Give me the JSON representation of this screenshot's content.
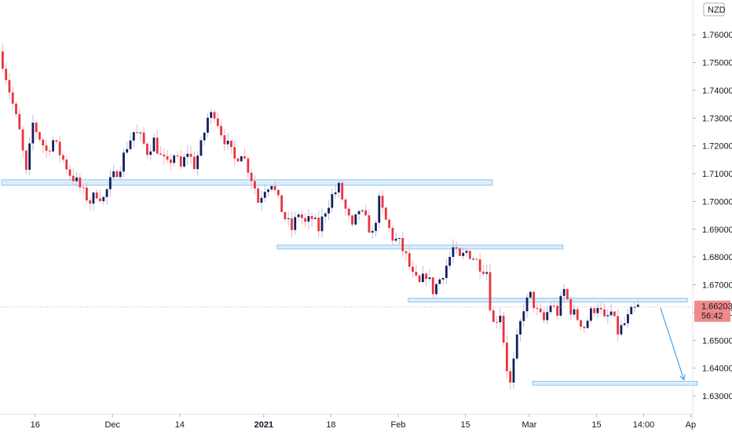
{
  "chart_data": {
    "type": "candlestick",
    "currency_label": "NZD",
    "price_axis": {
      "range": [
        1.6235,
        1.7725
      ],
      "ticks": [
        "1.76000",
        "1.75000",
        "1.74000",
        "1.73000",
        "1.72000",
        "1.71000",
        "1.70000",
        "1.69000",
        "1.68000",
        "1.67000",
        "1.66000",
        "1.65000",
        "1.64000",
        "1.63000"
      ],
      "tick_values": [
        1.76,
        1.75,
        1.74,
        1.73,
        1.72,
        1.71,
        1.7,
        1.69,
        1.68,
        1.67,
        1.66,
        1.65,
        1.64,
        1.63
      ]
    },
    "time_axis": {
      "labels": [
        {
          "text": "16",
          "bar": 10,
          "bold": false
        },
        {
          "text": "Dec",
          "bar": 33,
          "bold": false
        },
        {
          "text": "14",
          "bar": 53,
          "bold": false
        },
        {
          "text": "2021",
          "bar": 78,
          "bold": true
        },
        {
          "text": "18",
          "bar": 98,
          "bold": false
        },
        {
          "text": "Feb",
          "bar": 118,
          "bold": false
        },
        {
          "text": "15",
          "bar": 138,
          "bold": false
        },
        {
          "text": "Mar",
          "bar": 157,
          "bold": false
        },
        {
          "text": "15",
          "bar": 177,
          "bold": false
        },
        {
          "text": "14:00",
          "bar": 191,
          "bold": false
        },
        {
          "text": "Ap",
          "bar": 205,
          "bold": false
        }
      ]
    },
    "last_price": {
      "value": "1.66203",
      "countdown": "56:42",
      "level": 1.66203
    },
    "close_path": [
      [
        0,
        1.75
      ],
      [
        3,
        1.735
      ],
      [
        5,
        1.725
      ],
      [
        7,
        1.71
      ],
      [
        9,
        1.728
      ],
      [
        11,
        1.723
      ],
      [
        13,
        1.718
      ],
      [
        15,
        1.722
      ],
      [
        18,
        1.715
      ],
      [
        20,
        1.71
      ],
      [
        22,
        1.707
      ],
      [
        24,
        1.703
      ],
      [
        26,
        1.7
      ],
      [
        28,
        1.703
      ],
      [
        30,
        1.701
      ],
      [
        32,
        1.707
      ],
      [
        35,
        1.713
      ],
      [
        37,
        1.72
      ],
      [
        39,
        1.725
      ],
      [
        41,
        1.723
      ],
      [
        43,
        1.718
      ],
      [
        45,
        1.722
      ],
      [
        47,
        1.716
      ],
      [
        49,
        1.713
      ],
      [
        51,
        1.717
      ],
      [
        53,
        1.712
      ],
      [
        55,
        1.718
      ],
      [
        57,
        1.713
      ],
      [
        59,
        1.72
      ],
      [
        61,
        1.73
      ],
      [
        63,
        1.732
      ],
      [
        65,
        1.725
      ],
      [
        67,
        1.72
      ],
      [
        69,
        1.715
      ],
      [
        71,
        1.718
      ],
      [
        73,
        1.712
      ],
      [
        75,
        1.705
      ],
      [
        76,
        1.7
      ],
      [
        78,
        1.705
      ],
      [
        80,
        1.707
      ],
      [
        82,
        1.7
      ],
      [
        84,
        1.694
      ],
      [
        86,
        1.69
      ],
      [
        88,
        1.696
      ],
      [
        90,
        1.692
      ],
      [
        92,
        1.694
      ],
      [
        94,
        1.69
      ],
      [
        96,
        1.697
      ],
      [
        98,
        1.702
      ],
      [
        100,
        1.705
      ],
      [
        102,
        1.697
      ],
      [
        104,
        1.69
      ],
      [
        106,
        1.697
      ],
      [
        108,
        1.693
      ],
      [
        110,
        1.688
      ],
      [
        112,
        1.7
      ],
      [
        114,
        1.693
      ],
      [
        116,
        1.687
      ],
      [
        118,
        1.685
      ],
      [
        120,
        1.68
      ],
      [
        122,
        1.673
      ],
      [
        124,
        1.67
      ],
      [
        126,
        1.674
      ],
      [
        128,
        1.668
      ],
      [
        130,
        1.672
      ],
      [
        132,
        1.677
      ],
      [
        134,
        1.683
      ],
      [
        136,
        1.679
      ],
      [
        138,
        1.682
      ],
      [
        140,
        1.68
      ],
      [
        142,
        1.677
      ],
      [
        144,
        1.675
      ],
      [
        145,
        1.663
      ],
      [
        146,
        1.656
      ],
      [
        148,
        1.66
      ],
      [
        149,
        1.65
      ],
      [
        150,
        1.64
      ],
      [
        151,
        1.634
      ],
      [
        153,
        1.65
      ],
      [
        155,
        1.662
      ],
      [
        157,
        1.666
      ],
      [
        159,
        1.66
      ],
      [
        161,
        1.657
      ],
      [
        163,
        1.663
      ],
      [
        165,
        1.66
      ],
      [
        167,
        1.668
      ],
      [
        169,
        1.661
      ],
      [
        171,
        1.658
      ],
      [
        173,
        1.655
      ],
      [
        175,
        1.66
      ],
      [
        177,
        1.663
      ],
      [
        179,
        1.657
      ],
      [
        181,
        1.66
      ],
      [
        183,
        1.653
      ],
      [
        185,
        1.656
      ],
      [
        187,
        1.66
      ],
      [
        189,
        1.662
      ]
    ],
    "zones": [
      {
        "start_bar": 0,
        "end_bar": 146,
        "low": 1.7058,
        "high": 1.7078
      },
      {
        "start_bar": 82,
        "end_bar": 167,
        "low": 1.6833,
        "high": 1.6843
      },
      {
        "start_bar": 121,
        "end_bar": 204,
        "low": 1.6642,
        "high": 1.6652
      },
      {
        "start_bar": 158,
        "end_bar": 207,
        "low": 1.6343,
        "high": 1.6353
      }
    ],
    "projection_arrow": {
      "from_bar": 196,
      "from_price": 1.6617,
      "to_bar": 203,
      "to_price": 1.6358
    },
    "series": [
      {
        "up_color": "#131f5c",
        "down_color": "#e8343f",
        "wick_up": "#b8bfd8",
        "wick_down": "#f3b3b8"
      }
    ],
    "zone_fill": "#d8ecfc",
    "zone_stroke": "#5aa9e6",
    "arrow_color": "#4aa3df",
    "price_tag_color": "#f08a8a",
    "grid": false
  }
}
